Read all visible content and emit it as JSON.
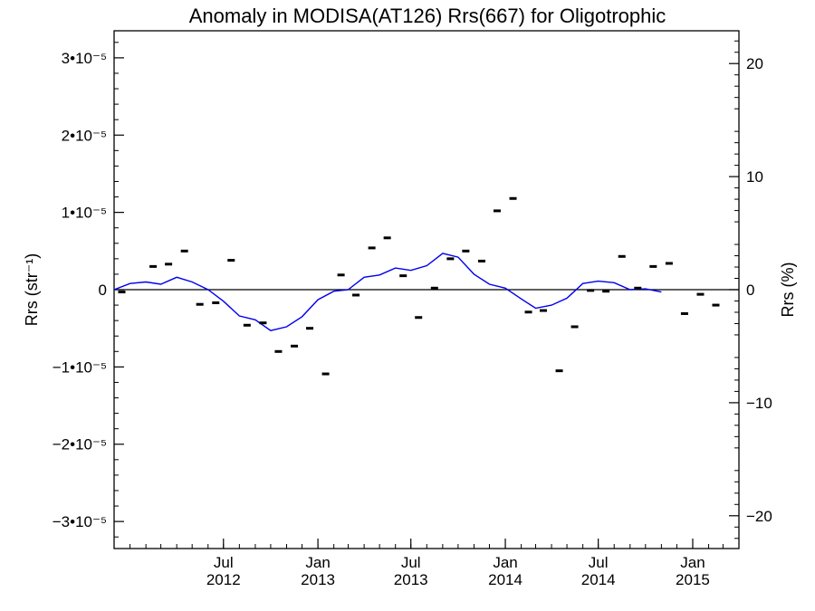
{
  "chart_data": {
    "type": "line",
    "title": "Anomaly in MODISA(AT126) Rrs(667) for Oligotrophic",
    "ylabel_left": "Rrs (str⁻¹)",
    "ylabel_right": "Rrs (%)",
    "xlim": [
      "2011-12-01",
      "2015-04-01"
    ],
    "ylim_left": [
      -3.35e-05,
      3.35e-05
    ],
    "ylim_right": [
      -22.9,
      22.9
    ],
    "x_ticks": [
      {
        "date": "2012-07-01",
        "line1": "Jul",
        "line2": "2012"
      },
      {
        "date": "2013-01-01",
        "line1": "Jan",
        "line2": "2013"
      },
      {
        "date": "2013-07-01",
        "line1": "Jul",
        "line2": "2013"
      },
      {
        "date": "2014-01-01",
        "line1": "Jan",
        "line2": "2014"
      },
      {
        "date": "2014-07-01",
        "line1": "Jul",
        "line2": "2014"
      },
      {
        "date": "2015-01-01",
        "line1": "Jan",
        "line2": "2015"
      }
    ],
    "y_ticks_left": [
      {
        "value": 3e-05,
        "label": "3•10⁻⁵"
      },
      {
        "value": 2e-05,
        "label": "2•10⁻⁵"
      },
      {
        "value": 1e-05,
        "label": "1•10⁻⁵"
      },
      {
        "value": 0,
        "label": "0"
      },
      {
        "value": -1e-05,
        "label": "−1•10⁻⁵"
      },
      {
        "value": -2e-05,
        "label": "−2•10⁻⁵"
      },
      {
        "value": -3e-05,
        "label": "−3•10⁻⁵"
      }
    ],
    "y_ticks_right": [
      {
        "value": 20,
        "label": "20"
      },
      {
        "value": 10,
        "label": "10"
      },
      {
        "value": 0,
        "label": "0"
      },
      {
        "value": -10,
        "label": "−10"
      },
      {
        "value": -20,
        "label": "−20"
      }
    ],
    "series": [
      {
        "color": "#000000",
        "marker": "dash",
        "points": [
          {
            "x": "2011-12-16",
            "y": -3e-07
          },
          {
            "x": "2012-02-15",
            "y": 3e-06
          },
          {
            "x": "2012-03-16",
            "y": 3.3e-06
          },
          {
            "x": "2012-04-16",
            "y": 5e-06
          },
          {
            "x": "2012-05-16",
            "y": -1.9e-06
          },
          {
            "x": "2012-06-16",
            "y": -1.7e-06
          },
          {
            "x": "2012-07-16",
            "y": 3.8e-06
          },
          {
            "x": "2012-08-16",
            "y": -4.6e-06
          },
          {
            "x": "2012-09-16",
            "y": -4.3e-06
          },
          {
            "x": "2012-10-16",
            "y": -8e-06
          },
          {
            "x": "2012-11-16",
            "y": -7.3e-06
          },
          {
            "x": "2012-12-16",
            "y": -5e-06
          },
          {
            "x": "2013-01-16",
            "y": -1.09e-05
          },
          {
            "x": "2013-02-15",
            "y": 1.9e-06
          },
          {
            "x": "2013-03-16",
            "y": -7e-07
          },
          {
            "x": "2013-04-16",
            "y": 5.4e-06
          },
          {
            "x": "2013-05-16",
            "y": 6.7e-06
          },
          {
            "x": "2013-06-16",
            "y": 1.8e-06
          },
          {
            "x": "2013-07-16",
            "y": -3.6e-06
          },
          {
            "x": "2013-08-16",
            "y": 2e-07
          },
          {
            "x": "2013-09-16",
            "y": 4e-06
          },
          {
            "x": "2013-10-16",
            "y": 5e-06
          },
          {
            "x": "2013-11-16",
            "y": 3.7e-06
          },
          {
            "x": "2013-12-16",
            "y": 1.02e-05
          },
          {
            "x": "2014-01-16",
            "y": 1.18e-05
          },
          {
            "x": "2014-02-15",
            "y": -2.9e-06
          },
          {
            "x": "2014-03-16",
            "y": -2.7e-06
          },
          {
            "x": "2014-04-16",
            "y": -1.05e-05
          },
          {
            "x": "2014-05-16",
            "y": -4.8e-06
          },
          {
            "x": "2014-06-16",
            "y": -1e-07
          },
          {
            "x": "2014-07-16",
            "y": -2e-07
          },
          {
            "x": "2014-08-16",
            "y": 4.3e-06
          },
          {
            "x": "2014-09-16",
            "y": 2e-07
          },
          {
            "x": "2014-10-16",
            "y": 3e-06
          },
          {
            "x": "2014-11-16",
            "y": 3.4e-06
          },
          {
            "x": "2014-12-16",
            "y": -3.1e-06
          },
          {
            "x": "2015-01-16",
            "y": -6e-07
          },
          {
            "x": "2015-02-15",
            "y": -2e-06
          }
        ]
      },
      {
        "color": "#0000ee",
        "marker": "line",
        "points": [
          {
            "x": "2011-12-01",
            "y": 0.0
          },
          {
            "x": "2012-01-01",
            "y": 8e-07
          },
          {
            "x": "2012-02-01",
            "y": 1e-06
          },
          {
            "x": "2012-03-01",
            "y": 7e-07
          },
          {
            "x": "2012-04-01",
            "y": 1.6e-06
          },
          {
            "x": "2012-05-01",
            "y": 1e-06
          },
          {
            "x": "2012-06-01",
            "y": 0.0
          },
          {
            "x": "2012-07-01",
            "y": -1.5e-06
          },
          {
            "x": "2012-08-01",
            "y": -3.4e-06
          },
          {
            "x": "2012-09-01",
            "y": -3.9e-06
          },
          {
            "x": "2012-10-01",
            "y": -5.3e-06
          },
          {
            "x": "2012-11-01",
            "y": -4.8e-06
          },
          {
            "x": "2012-12-01",
            "y": -3.5e-06
          },
          {
            "x": "2013-01-01",
            "y": -1.3e-06
          },
          {
            "x": "2013-02-01",
            "y": -2e-07
          },
          {
            "x": "2013-03-01",
            "y": 0.0
          },
          {
            "x": "2013-04-01",
            "y": 1.6e-06
          },
          {
            "x": "2013-05-01",
            "y": 1.9e-06
          },
          {
            "x": "2013-06-01",
            "y": 2.8e-06
          },
          {
            "x": "2013-07-01",
            "y": 2.5e-06
          },
          {
            "x": "2013-08-01",
            "y": 3.1e-06
          },
          {
            "x": "2013-09-01",
            "y": 4.7e-06
          },
          {
            "x": "2013-10-01",
            "y": 4.2e-06
          },
          {
            "x": "2013-11-01",
            "y": 2e-06
          },
          {
            "x": "2013-12-01",
            "y": 7e-07
          },
          {
            "x": "2014-01-01",
            "y": 2e-07
          },
          {
            "x": "2014-02-01",
            "y": -1.2e-06
          },
          {
            "x": "2014-03-01",
            "y": -2.4e-06
          },
          {
            "x": "2014-04-01",
            "y": -2e-06
          },
          {
            "x": "2014-05-01",
            "y": -1.1e-06
          },
          {
            "x": "2014-06-01",
            "y": 8e-07
          },
          {
            "x": "2014-07-01",
            "y": 1.1e-06
          },
          {
            "x": "2014-08-01",
            "y": 9e-07
          },
          {
            "x": "2014-09-01",
            "y": 0.0
          },
          {
            "x": "2014-10-01",
            "y": 1e-07
          },
          {
            "x": "2014-11-01",
            "y": -3e-07
          }
        ]
      }
    ],
    "zero_line": true,
    "grid": false
  }
}
